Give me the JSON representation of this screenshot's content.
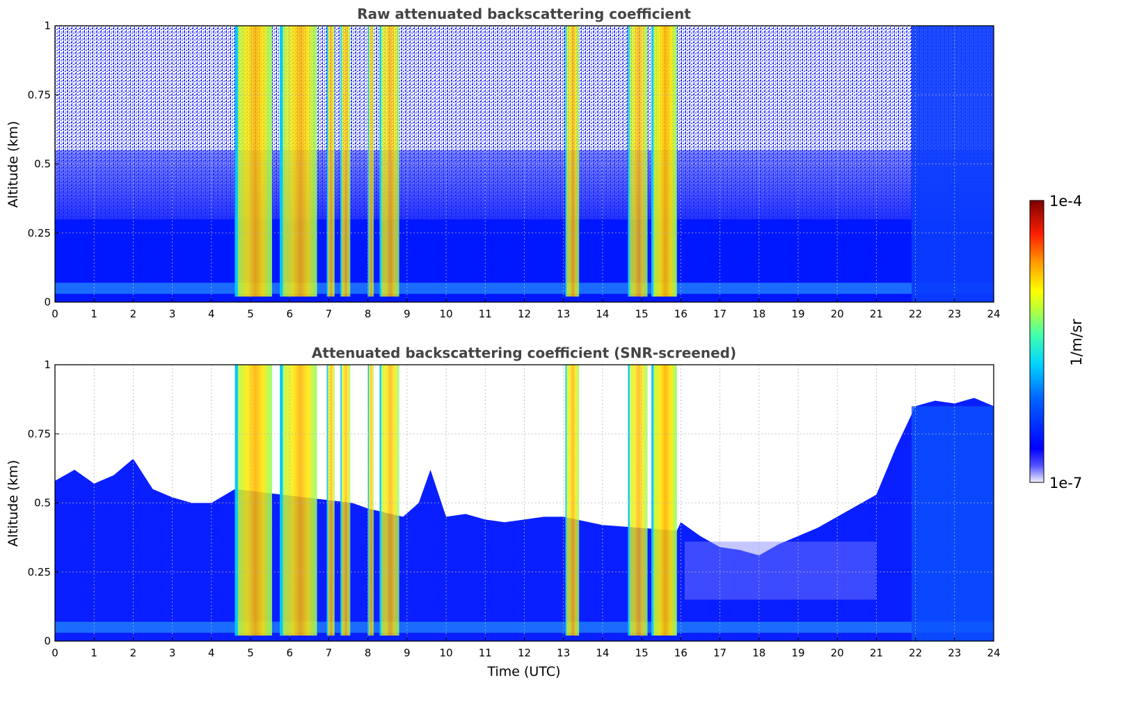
{
  "chart_data": [
    {
      "type": "heatmap",
      "title": "Raw attenuated backscattering coefficient",
      "xlabel": "",
      "ylabel": "Altitude (km)",
      "xlim": [
        0,
        24
      ],
      "ylim": [
        0,
        1
      ],
      "x_ticks": [
        "0",
        "1",
        "2",
        "3",
        "4",
        "5",
        "6",
        "7",
        "8",
        "9",
        "10",
        "11",
        "12",
        "13",
        "14",
        "15",
        "16",
        "17",
        "18",
        "19",
        "20",
        "21",
        "22",
        "23",
        "24"
      ],
      "y_ticks": [
        "0",
        "0.25",
        "0.5",
        "0.75",
        "1"
      ],
      "grid": true,
      "cloud_bands": [
        {
          "start": 4.6,
          "end": 5.55,
          "level": 0.72
        },
        {
          "start": 5.75,
          "end": 6.7,
          "level": 0.68
        },
        {
          "start": 6.95,
          "end": 7.15,
          "level": 0.5
        },
        {
          "start": 7.3,
          "end": 7.55,
          "level": 0.52
        },
        {
          "start": 8.0,
          "end": 8.15,
          "level": 0.45
        },
        {
          "start": 8.3,
          "end": 8.8,
          "level": 0.55
        },
        {
          "start": 13.05,
          "end": 13.4,
          "level": 0.58
        },
        {
          "start": 14.65,
          "end": 15.15,
          "level": 0.55
        },
        {
          "start": 15.25,
          "end": 15.9,
          "level": 0.78
        }
      ],
      "screened": false
    },
    {
      "type": "heatmap",
      "title": "Attenuated backscattering coefficient (SNR-screened)",
      "xlabel": "Time (UTC)",
      "ylabel": "Altitude (km)",
      "xlim": [
        0,
        24
      ],
      "ylim": [
        0,
        1
      ],
      "x_ticks": [
        "0",
        "1",
        "2",
        "3",
        "4",
        "5",
        "6",
        "7",
        "8",
        "9",
        "10",
        "11",
        "12",
        "13",
        "14",
        "15",
        "16",
        "17",
        "18",
        "19",
        "20",
        "21",
        "22",
        "23",
        "24"
      ],
      "y_ticks": [
        "0",
        "0.25",
        "0.5",
        "0.75",
        "1"
      ],
      "grid": true,
      "cloud_bands": [
        {
          "start": 4.6,
          "end": 5.55,
          "level": 0.72
        },
        {
          "start": 5.75,
          "end": 6.7,
          "level": 0.68
        },
        {
          "start": 6.95,
          "end": 7.15,
          "level": 0.5
        },
        {
          "start": 7.3,
          "end": 7.55,
          "level": 0.52
        },
        {
          "start": 8.0,
          "end": 8.15,
          "level": 0.45
        },
        {
          "start": 8.3,
          "end": 8.8,
          "level": 0.55
        },
        {
          "start": 13.05,
          "end": 13.4,
          "level": 0.58
        },
        {
          "start": 14.65,
          "end": 15.15,
          "level": 0.55
        },
        {
          "start": 15.25,
          "end": 15.9,
          "level": 0.78
        }
      ],
      "signal_top_km": [
        {
          "x": 0,
          "y": 0.58
        },
        {
          "x": 0.5,
          "y": 0.62
        },
        {
          "x": 1,
          "y": 0.57
        },
        {
          "x": 1.5,
          "y": 0.6
        },
        {
          "x": 2,
          "y": 0.66
        },
        {
          "x": 2.5,
          "y": 0.55
        },
        {
          "x": 3,
          "y": 0.52
        },
        {
          "x": 3.5,
          "y": 0.5
        },
        {
          "x": 4,
          "y": 0.5
        },
        {
          "x": 4.6,
          "y": 0.55
        },
        {
          "x": 7.6,
          "y": 0.5
        },
        {
          "x": 8,
          "y": 0.48
        },
        {
          "x": 8.9,
          "y": 0.45
        },
        {
          "x": 9.3,
          "y": 0.5
        },
        {
          "x": 9.6,
          "y": 0.62
        },
        {
          "x": 10,
          "y": 0.45
        },
        {
          "x": 10.5,
          "y": 0.46
        },
        {
          "x": 11,
          "y": 0.44
        },
        {
          "x": 11.5,
          "y": 0.43
        },
        {
          "x": 12,
          "y": 0.44
        },
        {
          "x": 12.5,
          "y": 0.45
        },
        {
          "x": 13,
          "y": 0.45
        },
        {
          "x": 14,
          "y": 0.42
        },
        {
          "x": 15.9,
          "y": 0.4
        },
        {
          "x": 16,
          "y": 0.43
        },
        {
          "x": 16.5,
          "y": 0.38
        },
        {
          "x": 17,
          "y": 0.34
        },
        {
          "x": 17.5,
          "y": 0.33
        },
        {
          "x": 18,
          "y": 0.31
        },
        {
          "x": 18.5,
          "y": 0.35
        },
        {
          "x": 19,
          "y": 0.38
        },
        {
          "x": 19.5,
          "y": 0.41
        },
        {
          "x": 20,
          "y": 0.45
        },
        {
          "x": 20.5,
          "y": 0.49
        },
        {
          "x": 21,
          "y": 0.53
        },
        {
          "x": 21.5,
          "y": 0.7
        },
        {
          "x": 22,
          "y": 0.85
        },
        {
          "x": 22.5,
          "y": 0.87
        },
        {
          "x": 23,
          "y": 0.86
        },
        {
          "x": 23.5,
          "y": 0.88
        },
        {
          "x": 24,
          "y": 0.85
        }
      ],
      "screened": true
    }
  ],
  "colorbar": {
    "label": "1/m/sr",
    "max_label": "1e-4",
    "min_label": "1e-7",
    "scale": "log",
    "colormap": [
      "#eeeeff",
      "#0000ff",
      "#0090ff",
      "#00e8e0",
      "#7fff70",
      "#ffff00",
      "#ff9000",
      "#ff1000",
      "#800000"
    ]
  }
}
